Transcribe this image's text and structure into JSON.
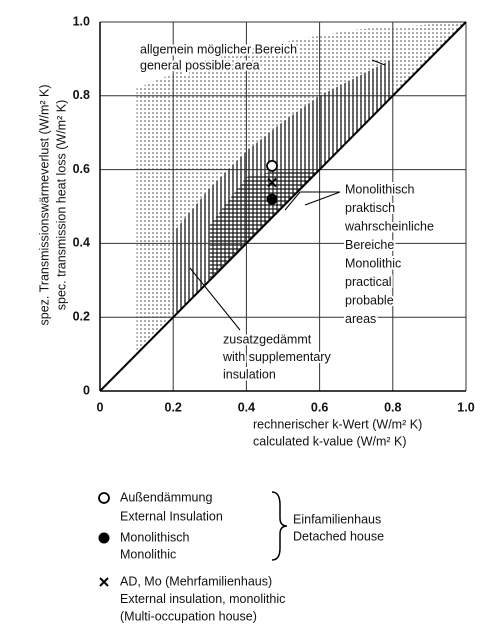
{
  "chart_data": {
    "type": "scatter",
    "xlabel": [
      "rechnerischer k-Wert (W/m² K)",
      "calculated k-value (W/m² K)"
    ],
    "ylabel": [
      "spez. Transmissionswärmeverlust (W/m² K)",
      "spec. transmission heat loss (W/m² K)"
    ],
    "xlim": [
      0,
      1
    ],
    "ylim": [
      0,
      1
    ],
    "xticks": [
      0,
      0.2,
      0.4,
      0.6,
      0.8,
      {
        "value": 1,
        "label": "1.0"
      }
    ],
    "yticks": [
      0,
      0.2,
      0.4,
      0.6,
      0.8,
      {
        "value": 1,
        "label": "1.0"
      }
    ],
    "grid": true,
    "reference_line": {
      "x": [
        0,
        1
      ],
      "y": [
        0,
        1
      ]
    },
    "regions": [
      {
        "label": [
          "allgemein möglicher Bereich",
          "general possible area"
        ],
        "fill": "dots",
        "x": [
          0.1,
          0.1,
          0.35,
          0.7,
          1.0
        ],
        "y": [
          0.1,
          0.82,
          0.92,
          0.98,
          1.0
        ]
      },
      {
        "label": [
          "zusatzgedämmt",
          "with supplementary",
          "insulation"
        ],
        "fill": "vertical",
        "x": [
          0.2,
          0.2,
          0.3,
          0.4,
          0.5,
          0.6,
          0.8,
          0.8
        ],
        "y": [
          0.2,
          0.43,
          0.55,
          0.65,
          0.73,
          0.8,
          0.9,
          0.8
        ]
      },
      {
        "label": [
          "Monolithisch",
          "praktisch",
          "wahrscheinliche",
          "Bereiche",
          "Monolithic",
          "practical",
          "probable",
          "areas"
        ],
        "fill": "horizontal",
        "x": [
          0.3,
          0.3,
          0.4,
          0.5,
          0.6,
          0.55
        ],
        "y": [
          0.3,
          0.45,
          0.58,
          0.6,
          0.6,
          0.55
        ]
      }
    ],
    "series": [
      {
        "name": [
          "Außendämmung",
          "External Insulation"
        ],
        "marker": "open-circle",
        "color": "#000000",
        "x": [
          0.47
        ],
        "values": [
          0.61
        ]
      },
      {
        "name": [
          "Monolithisch",
          "Monolithic"
        ],
        "marker": "filled-circle",
        "color": "#000000",
        "x": [
          0.47
        ],
        "values": [
          0.52
        ]
      },
      {
        "name": [
          "AD, Mo (Mehrfamilienhaus)",
          "External insulation, monolithic",
          "(Multi-occupation house)"
        ],
        "marker": "cross",
        "color": "#000000",
        "x": [
          0.47
        ],
        "values": [
          0.565
        ]
      }
    ],
    "legend_group": [
      "Einfamilienhaus",
      "Detached house"
    ]
  }
}
